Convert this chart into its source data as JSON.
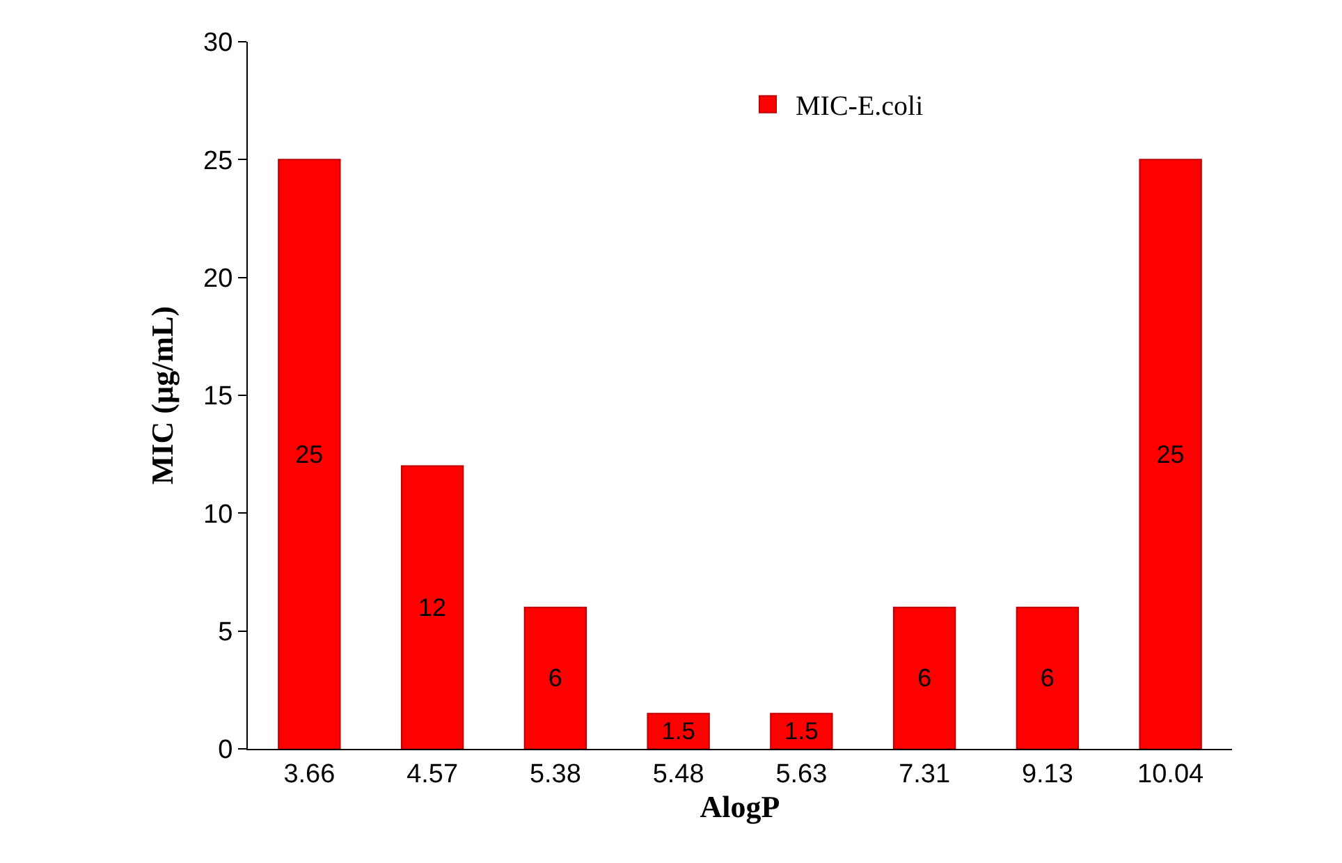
{
  "chart_data": {
    "type": "bar",
    "xlabel": "AlogP",
    "ylabel": "MIC (µg/mL)",
    "categories": [
      "3.66",
      "4.57",
      "5.38",
      "5.48",
      "5.63",
      "7.31",
      "9.13",
      "10.04"
    ],
    "series": [
      {
        "name": "MIC-E.coli",
        "color": "#ff0000",
        "values": [
          25,
          12,
          6,
          1.5,
          1.5,
          6,
          6,
          25
        ]
      }
    ],
    "ylim": [
      0,
      30
    ],
    "yticks": [
      0,
      5,
      10,
      15,
      20,
      25,
      30
    ],
    "data_labels": true,
    "legend": "top"
  }
}
